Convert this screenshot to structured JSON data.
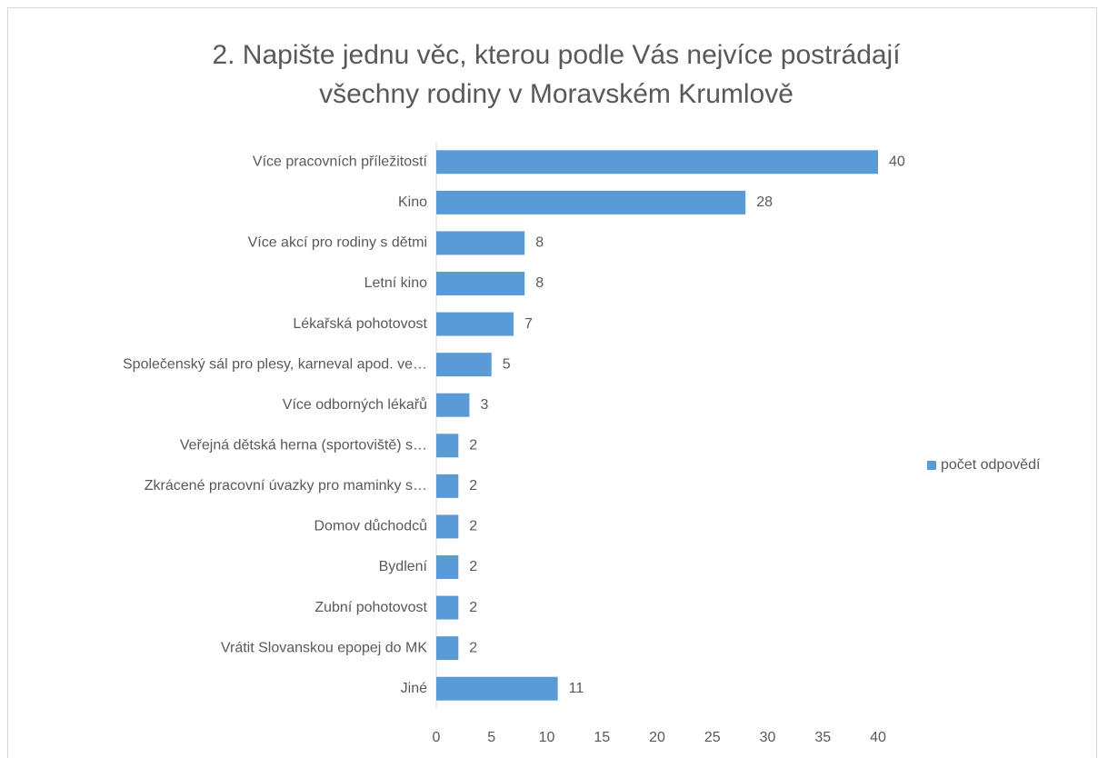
{
  "chart_data": {
    "type": "bar",
    "orientation": "horizontal",
    "title": [
      "2. Napište jednu věc, kterou podle Vás nejvíce postrádají",
      "všechny rodiny v Moravském Krumlově"
    ],
    "categories": [
      "Více pracovních příležitostí",
      "Kino",
      "Více akcí pro rodiny s dětmi",
      "Letní kino",
      "Lékařská pohotovost",
      "Společenský sál pro plesy, karneval apod. ve…",
      "Více odborných lékařů",
      "Veřejná dětská herna (sportoviště) s…",
      "Zkrácené pracovní úvazky pro maminky s…",
      "Domov důchodců",
      "Bydlení",
      "Zubní pohotovost",
      "Vrátit Slovanskou epopej do MK",
      "Jiné"
    ],
    "series": [
      {
        "name": "počet odpovědí",
        "color": "#5b9bd5",
        "values": [
          40,
          28,
          8,
          8,
          7,
          5,
          3,
          2,
          2,
          2,
          2,
          2,
          2,
          11
        ]
      }
    ],
    "xlim": [
      0,
      40
    ],
    "xticks": [
      0,
      5,
      10,
      15,
      20,
      25,
      30,
      35,
      40
    ],
    "grid": false,
    "legend": "right"
  }
}
